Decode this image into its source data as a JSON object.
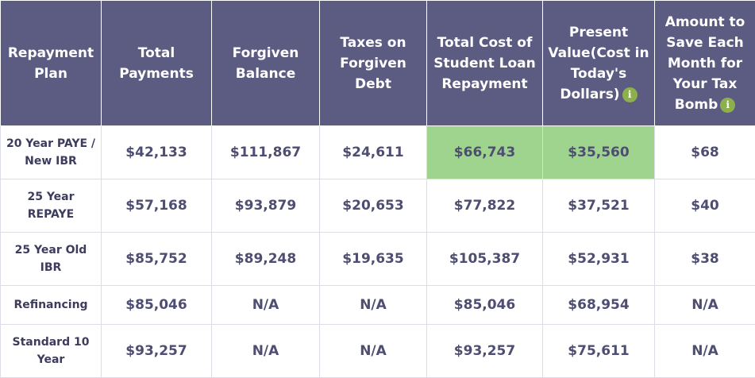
{
  "table": {
    "headers": [
      "Repayment Plan",
      "Total Payments",
      "Forgiven Balance",
      "Taxes on Forgiven Debt",
      "Total Cost of Student Loan Repayment",
      "Present Value(Cost in Today's Dollars)",
      "Amount to Save Each Month for Your Tax Bomb"
    ],
    "info_icon_text": "i",
    "highlight_color": "#9fd48f",
    "header_color": "#5c5b82",
    "icon_color": "#8eb04c",
    "rows": [
      [
        "20 Year PAYE / New IBR",
        "$42,133",
        "$111,867",
        "$24,611",
        "$66,743",
        "$35,560",
        "$68"
      ],
      [
        "25 Year REPAYE",
        "$57,168",
        "$93,879",
        "$20,653",
        "$77,822",
        "$37,521",
        "$40"
      ],
      [
        "25 Year Old IBR",
        "$85,752",
        "$89,248",
        "$19,635",
        "$105,387",
        "$52,931",
        "$38"
      ],
      [
        "Refinancing",
        "$85,046",
        "N/A",
        "N/A",
        "$85,046",
        "$68,954",
        "N/A"
      ],
      [
        "Standard 10 Year",
        "$93,257",
        "N/A",
        "N/A",
        "$93,257",
        "$75,611",
        "N/A"
      ]
    ]
  }
}
